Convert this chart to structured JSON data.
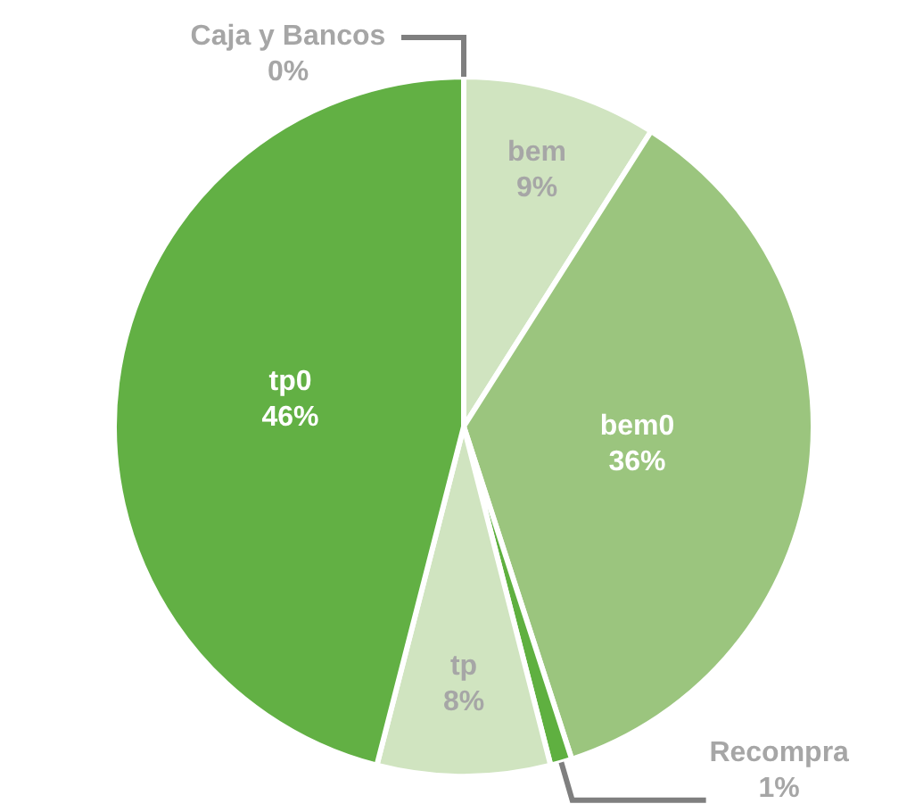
{
  "chart_data": {
    "type": "pie",
    "categories": [
      "Caja y Bancos",
      "bem",
      "bem0",
      "Recompra",
      "tp",
      "tp0"
    ],
    "values": [
      0,
      9,
      36,
      1,
      8,
      46
    ],
    "value_labels": [
      "0%",
      "9%",
      "36%",
      "1%",
      "8%",
      "46%"
    ],
    "colors": [
      "#a9a9a9",
      "#d0e4c0",
      "#9bc57e",
      "#5fb040",
      "#d0e4c0",
      "#62b044"
    ],
    "legend": false
  }
}
